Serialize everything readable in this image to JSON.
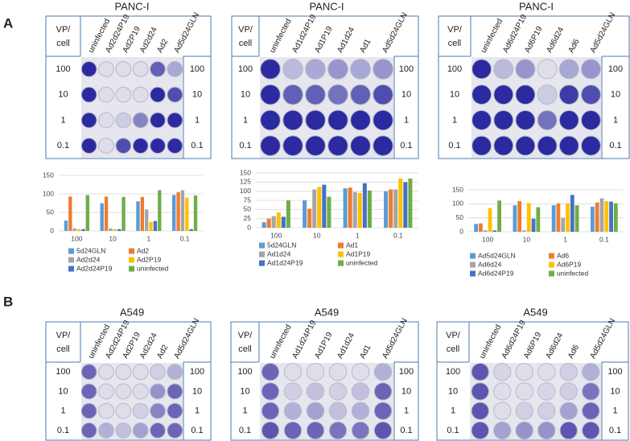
{
  "figure": {
    "panel_labels": [
      "A",
      "B"
    ],
    "vp_header": [
      "VP/",
      "cell"
    ],
    "plates": [
      {
        "title": "PANC-I",
        "columns": [
          "uninfected",
          "Ad2d24P19",
          "Ad2P19",
          "Ad2d24",
          "Ad2",
          "Ad5d24GLN"
        ],
        "rows": [
          "100",
          "10",
          "1",
          "0.1"
        ]
      },
      {
        "title": "PANC-I",
        "columns": [
          "uninfected",
          "Ad1d24P19",
          "Ad1P19",
          "Ad1d24",
          "Ad1",
          "Ad5d24GLN"
        ],
        "rows": [
          "100",
          "10",
          "1",
          "0.1"
        ]
      },
      {
        "title": "PANC-I",
        "columns": [
          "uninfected",
          "Ad6d24P19",
          "Ad6P19",
          "Ad6d24",
          "Ad6",
          "Ad5d24GLN"
        ],
        "rows": [
          "100",
          "10",
          "1",
          "0.1"
        ]
      },
      {
        "title": "A549",
        "columns": [
          "uninfected",
          "Ad2d24P19",
          "Ad2P19",
          "Ad2d24",
          "Ad2",
          "Ad5d24GLN"
        ],
        "rows": [
          "100",
          "10",
          "1",
          "0.1"
        ]
      },
      {
        "title": "A549",
        "columns": [
          "uninfected",
          "Ad1d24P19",
          "Ad1P19",
          "Ad1d24",
          "Ad1",
          "Ad5d24GLN"
        ],
        "rows": [
          "100",
          "10",
          "1",
          "0.1"
        ]
      },
      {
        "title": "A549",
        "columns": [
          "uninfected",
          "Ad6d24P19",
          "Ad6P19",
          "Ad6d24",
          "Ad6",
          "Ad5d24GLN"
        ],
        "rows": [
          "100",
          "10",
          "1",
          "0.1"
        ]
      }
    ]
  },
  "chart_data": [
    {
      "type": "bar",
      "categories": [
        "100",
        "10",
        "1",
        "0.1"
      ],
      "ylim": [
        0,
        150
      ],
      "yticks": [
        0,
        50,
        100,
        150
      ],
      "grid": true,
      "series": [
        {
          "name": "5d24GLN",
          "color": "#5b9bd5",
          "values": [
            28,
            75,
            80,
            97
          ]
        },
        {
          "name": "Ad2",
          "color": "#ed7d31",
          "values": [
            93,
            93,
            92,
            105
          ]
        },
        {
          "name": "Ad2d24",
          "color": "#a5a5a5",
          "values": [
            7,
            7,
            58,
            110
          ]
        },
        {
          "name": "Ad2P19",
          "color": "#ffc000",
          "values": [
            5,
            5,
            25,
            90
          ]
        },
        {
          "name": "Ad2d24P19",
          "color": "#4472c4",
          "values": [
            5,
            5,
            27,
            5
          ]
        },
        {
          "name": "uninfected",
          "color": "#70ad47",
          "values": [
            97,
            92,
            110,
            96
          ]
        }
      ]
    },
    {
      "type": "bar",
      "categories": [
        "100",
        "10",
        "1",
        "0.1"
      ],
      "ylim": [
        0,
        150
      ],
      "yticks": [
        0,
        25,
        50,
        75,
        100,
        125,
        150
      ],
      "grid": true,
      "series": [
        {
          "name": "5d24GLN",
          "color": "#5b9bd5",
          "values": [
            15,
            75,
            108,
            100
          ]
        },
        {
          "name": "Ad1",
          "color": "#ed7d31",
          "values": [
            25,
            52,
            110,
            105
          ]
        },
        {
          "name": "Ad1d24",
          "color": "#a5a5a5",
          "values": [
            32,
            105,
            98,
            105
          ]
        },
        {
          "name": "Ad1P19",
          "color": "#ffc000",
          "values": [
            42,
            112,
            95,
            135
          ]
        },
        {
          "name": "Ad1d24P19",
          "color": "#4472c4",
          "values": [
            30,
            118,
            122,
            125
          ]
        },
        {
          "name": "uninfected",
          "color": "#70ad47",
          "values": [
            75,
            85,
            102,
            135
          ]
        }
      ]
    },
    {
      "type": "bar",
      "categories": [
        "100",
        "10",
        "1",
        "0.1"
      ],
      "ylim": [
        0,
        150
      ],
      "yticks": [
        0,
        50,
        100,
        150
      ],
      "grid": true,
      "series": [
        {
          "name": "Ad5d24GLN",
          "color": "#5b9bd5",
          "values": [
            28,
            95,
            95,
            90
          ]
        },
        {
          "name": "Ad6",
          "color": "#ed7d31",
          "values": [
            30,
            110,
            102,
            105
          ]
        },
        {
          "name": "Ad6d24",
          "color": "#a5a5a5",
          "values": [
            5,
            5,
            50,
            120
          ]
        },
        {
          "name": "Ad6P19",
          "color": "#ffc000",
          "values": [
            85,
            103,
            102,
            110
          ]
        },
        {
          "name": "Ad6d24P19",
          "color": "#4472c4",
          "values": [
            5,
            47,
            132,
            108
          ]
        },
        {
          "name": "uninfected",
          "color": "#70ad47",
          "values": [
            112,
            88,
            95,
            102
          ]
        }
      ]
    }
  ]
}
